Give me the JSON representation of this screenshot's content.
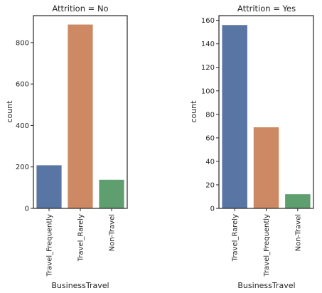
{
  "chart_data": [
    {
      "type": "bar",
      "title": "Attrition = No",
      "xlabel": "BusinessTravel",
      "ylabel": "count",
      "categories": [
        "Travel_Frequently",
        "Travel_Rarely",
        "Non-Travel"
      ],
      "values": [
        208,
        887,
        138
      ],
      "colors": [
        "#5975a4",
        "#cc8963",
        "#5f9e6e"
      ],
      "ylim": [
        0,
        930
      ],
      "yticks": [
        0,
        200,
        400,
        600,
        800
      ],
      "grid": false
    },
    {
      "type": "bar",
      "title": "Attrition = Yes",
      "xlabel": "BusinessTravel",
      "ylabel": "count",
      "categories": [
        "Travel_Rarely",
        "Travel_Frequently",
        "Non-Travel"
      ],
      "values": [
        156,
        69,
        12
      ],
      "colors": [
        "#5975a4",
        "#cc8963",
        "#5f9e6e"
      ],
      "ylim": [
        0,
        164
      ],
      "yticks": [
        0,
        20,
        40,
        60,
        80,
        100,
        120,
        140,
        160
      ],
      "grid": false
    }
  ]
}
